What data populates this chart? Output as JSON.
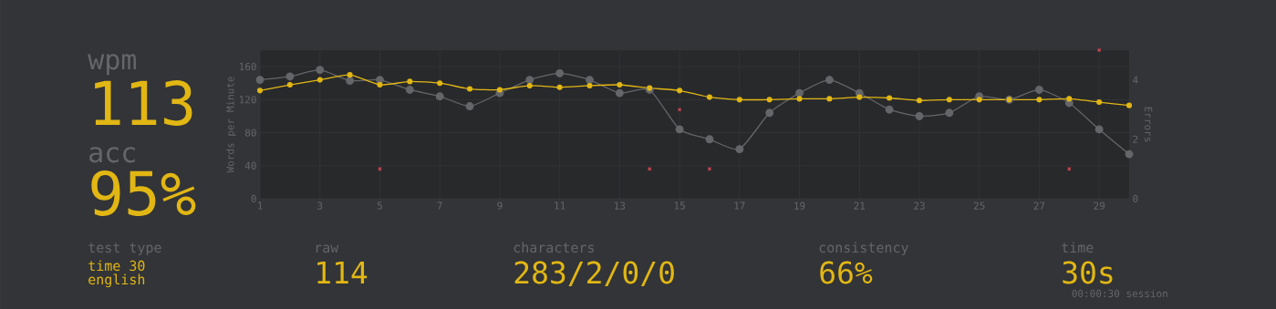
{
  "chart_data": {
    "type": "line",
    "x": [
      1,
      2,
      3,
      4,
      5,
      6,
      7,
      8,
      9,
      10,
      11,
      12,
      13,
      14,
      15,
      16,
      17,
      18,
      19,
      20,
      21,
      22,
      23,
      24,
      25,
      26,
      27,
      28,
      29,
      30
    ],
    "xlim": [
      1,
      30
    ],
    "xticks": [
      1,
      3,
      5,
      7,
      9,
      11,
      13,
      15,
      17,
      19,
      21,
      23,
      25,
      27,
      29
    ],
    "ylim": [
      0,
      180
    ],
    "yticks": [
      0,
      40,
      80,
      120,
      160
    ],
    "y2lim": [
      0,
      5
    ],
    "y2ticks": [
      0,
      2,
      4
    ],
    "ylabel": "Words per Minute",
    "y2label": "Errors",
    "grid": true,
    "marker": "circle",
    "line_style": "solid",
    "series": [
      {
        "color": "#646669",
        "values": [
          144,
          148,
          156,
          143,
          144,
          132,
          124,
          112,
          128,
          144,
          152,
          144,
          128,
          132,
          84,
          72,
          60,
          104,
          128,
          144,
          128,
          108,
          100,
          104,
          124,
          120,
          132,
          116,
          84,
          54
        ]
      },
      {
        "color": "#e2b714",
        "values": [
          131,
          138,
          144,
          150,
          138,
          142,
          140,
          133,
          132,
          137,
          135,
          137,
          138,
          134,
          131,
          123,
          120,
          120,
          121,
          121,
          123,
          122,
          119,
          120,
          120,
          120,
          120,
          121,
          117,
          113
        ]
      },
      {
        "type": "scatter",
        "color": "#ca4754",
        "axis": "y2",
        "marker": "cross",
        "values": [
          null,
          null,
          null,
          null,
          1,
          null,
          null,
          null,
          null,
          null,
          null,
          null,
          null,
          1,
          3,
          1,
          null,
          null,
          null,
          null,
          null,
          null,
          null,
          null,
          null,
          null,
          null,
          1,
          5,
          null
        ]
      }
    ],
    "annotations": [
      "wpm",
      "113",
      "acc",
      "95%",
      "test type",
      "time 30",
      "english",
      "raw",
      "114",
      "characters",
      "283/2/0/0",
      "consistency",
      "66%",
      "time",
      "30s",
      "00:00:30 session"
    ]
  }
}
